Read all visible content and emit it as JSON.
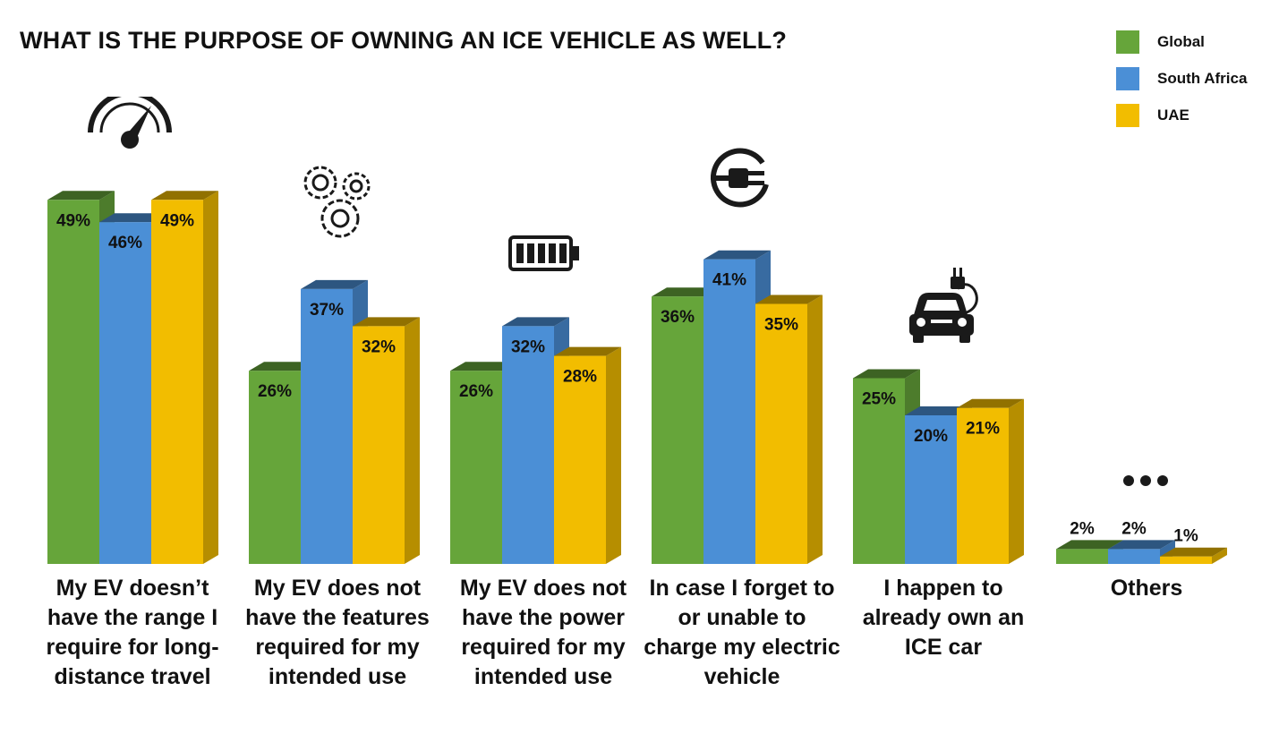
{
  "chart_data": {
    "type": "bar",
    "title": "WHAT IS THE PURPOSE OF OWNING AN ICE VEHICLE AS WELL?",
    "categories": [
      "My EV doesn’t have the range I require for long-distance travel",
      "My EV does not have the features required for my intended use",
      "My EV does not have the power required for my intended use",
      "In case I forget to or unable to charge my electric vehicle",
      "I happen to already own an ICE car",
      "Others"
    ],
    "category_icons": [
      "speedometer-icon",
      "gears-icon",
      "battery-icon",
      "plug-icon",
      "electric-car-icon",
      "ellipsis-icon"
    ],
    "series": [
      {
        "name": "Global",
        "color": "#66a53a",
        "values": [
          49,
          26,
          26,
          36,
          25,
          2
        ]
      },
      {
        "name": "South Africa",
        "color": "#4b8fd6",
        "values": [
          46,
          37,
          32,
          41,
          20,
          2
        ]
      },
      {
        "name": "UAE",
        "color": "#f2bd00",
        "values": [
          49,
          32,
          28,
          35,
          21,
          1
        ]
      }
    ],
    "value_labels": [
      [
        "49%",
        "26%",
        "26%",
        "36%",
        "25%",
        "2%"
      ],
      [
        "46%",
        "37%",
        "32%",
        "41%",
        "20%",
        "2%"
      ],
      [
        "49%",
        "32%",
        "28%",
        "35%",
        "21%",
        "1%"
      ]
    ],
    "value_unit": "%",
    "ylim": [
      0,
      50
    ],
    "legend_position": "top-right",
    "grid": false,
    "style": "3d-bars"
  }
}
